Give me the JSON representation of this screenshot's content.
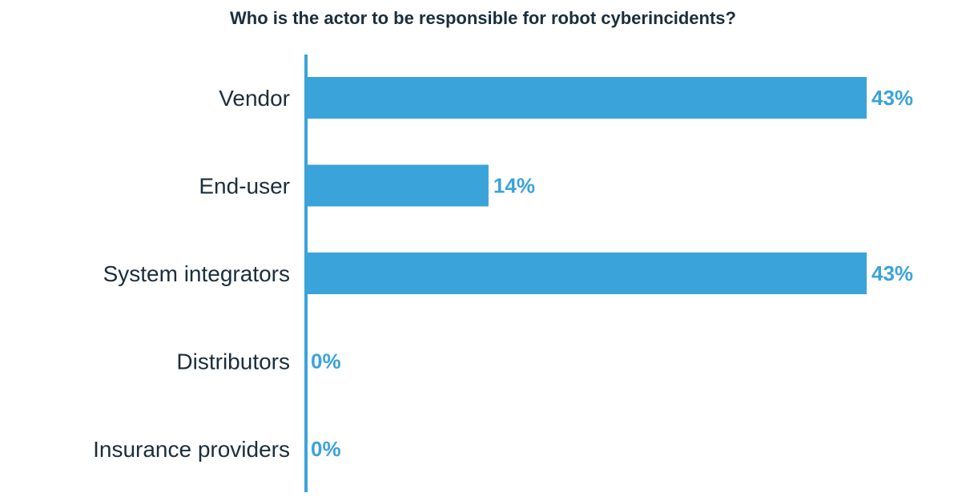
{
  "chart_data": {
    "type": "bar",
    "orientation": "horizontal",
    "title": "Who is the actor to be responsible for robot cyberincidents?",
    "categories": [
      "Vendor",
      "End-user",
      "System integrators",
      "Distributors",
      "Insurance providers"
    ],
    "values": [
      43,
      14,
      43,
      0,
      0
    ],
    "value_labels": [
      "43%",
      "14%",
      "43%",
      "0%",
      "0%"
    ],
    "xlim": [
      0,
      43
    ],
    "grid": false,
    "legend": "none",
    "colors": {
      "bar": "#3aa3da",
      "axis": "#3aa3da",
      "value_label": "#3aa3da",
      "text": "#1b2e3c"
    }
  }
}
